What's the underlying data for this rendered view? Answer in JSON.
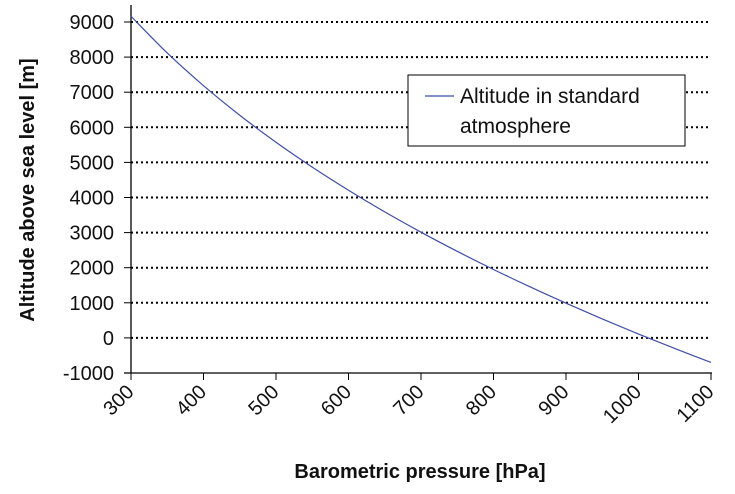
{
  "chart_data": {
    "type": "line",
    "title": "",
    "xlabel": "Barometric pressure [hPa]",
    "ylabel": "Altitude above sea level [m]",
    "xlim": [
      300,
      1100
    ],
    "ylim": [
      -1000,
      9000
    ],
    "xticks": [
      "300",
      "400",
      "500",
      "600",
      "700",
      "800",
      "900",
      "1000",
      "1100"
    ],
    "yticks": [
      "9000",
      "8000",
      "7000",
      "6000",
      "5000",
      "4000",
      "3000",
      "2000",
      "1000",
      "0",
      "-1000"
    ],
    "grid": "horizontal dotted",
    "legend_position": "top-right",
    "series": [
      {
        "name": "Altitude in standard atmosphere",
        "color": "#3f4ea8",
        "x": [
          300,
          350,
          400,
          450,
          500,
          550,
          600,
          650,
          700,
          750,
          800,
          850,
          900,
          950,
          1000,
          1050,
          1100
        ],
        "y": [
          9164,
          8117,
          7185,
          6344,
          5574,
          4865,
          4207,
          3590,
          3012,
          2466,
          1949,
          1458,
          989,
          540,
          110,
          -301,
          -699
        ]
      }
    ],
    "legend_lines": [
      "Altitude in standard",
      "atmosphere"
    ]
  }
}
